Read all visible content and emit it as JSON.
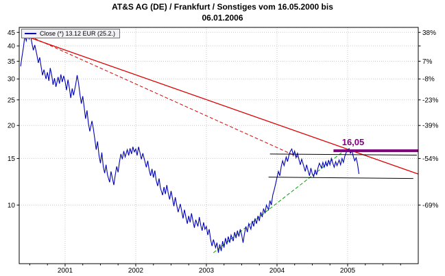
{
  "title": {
    "line1": "AT&S AG (DE) / Frankfurt / Sonstiges vom 16.05.2000 bis",
    "line2": "06.01.2006"
  },
  "legend": {
    "label": "Close (*) 13.12 EUR (25.2.)"
  },
  "colors": {
    "price_line": "#0000b4",
    "trend_red": "#dd0000",
    "trend_green": "#00a000",
    "target_purple": "#800080",
    "support_black": "#000000",
    "grid": "#c8c8c8",
    "axis_text": "#000000",
    "border": "#000000"
  },
  "chart_data": {
    "type": "line",
    "title": "AT&S AG (DE) / Frankfurt / Sonstiges vom 16.05.2000 bis 06.01.2006",
    "xlabel": "",
    "ylabel": "",
    "x_axis": {
      "range": [
        2000.35,
        2006.0
      ],
      "ticks": [
        2001,
        2002,
        2003,
        2004,
        2005
      ],
      "scale": "linear"
    },
    "y_axis": {
      "range": [
        6.0,
        47.0
      ],
      "scale": "log",
      "ticks": [
        45,
        40,
        35,
        30,
        25,
        20,
        15,
        10
      ],
      "right_labels": [
        "38%",
        "",
        "7%",
        "-8%",
        "-23%",
        "-39%",
        "-54%",
        "-69%"
      ]
    },
    "grid": true,
    "legend_position": "top-left",
    "series": [
      {
        "name": "Close",
        "color": "#0000b4",
        "points": [
          [
            2000.37,
            33.5
          ],
          [
            2000.39,
            36.5
          ],
          [
            2000.41,
            39.5
          ],
          [
            2000.43,
            43.6
          ],
          [
            2000.45,
            41.8
          ],
          [
            2000.47,
            44.2
          ],
          [
            2000.49,
            42.5
          ],
          [
            2000.51,
            43.8
          ],
          [
            2000.53,
            41.0
          ],
          [
            2000.55,
            38.5
          ],
          [
            2000.57,
            40.3
          ],
          [
            2000.6,
            37.0
          ],
          [
            2000.62,
            34.5
          ],
          [
            2000.64,
            36.2
          ],
          [
            2000.66,
            33.5
          ],
          [
            2000.68,
            31.0
          ],
          [
            2000.7,
            32.5
          ],
          [
            2000.73,
            30.0
          ],
          [
            2000.75,
            31.8
          ],
          [
            2000.77,
            29.5
          ],
          [
            2000.79,
            33.0
          ],
          [
            2000.81,
            31.0
          ],
          [
            2000.83,
            28.5
          ],
          [
            2000.85,
            30.2
          ],
          [
            2000.87,
            28.0
          ],
          [
            2000.9,
            30.5
          ],
          [
            2000.92,
            28.8
          ],
          [
            2000.94,
            31.2
          ],
          [
            2000.96,
            29.2
          ],
          [
            2000.98,
            30.8
          ],
          [
            2001.0,
            29.3
          ],
          [
            2001.02,
            27.2
          ],
          [
            2001.04,
            29.8
          ],
          [
            2001.06,
            27.8
          ],
          [
            2001.08,
            25.4
          ],
          [
            2001.1,
            27.6
          ],
          [
            2001.12,
            26.0
          ],
          [
            2001.15,
            28.6
          ],
          [
            2001.17,
            31.0
          ],
          [
            2001.19,
            29.0
          ],
          [
            2001.21,
            26.2
          ],
          [
            2001.23,
            24.2
          ],
          [
            2001.25,
            25.8
          ],
          [
            2001.27,
            23.4
          ],
          [
            2001.29,
            21.2
          ],
          [
            2001.31,
            22.8
          ],
          [
            2001.33,
            20.4
          ],
          [
            2001.35,
            19.0
          ],
          [
            2001.38,
            20.8
          ],
          [
            2001.4,
            19.4
          ],
          [
            2001.42,
            17.8
          ],
          [
            2001.44,
            16.2
          ],
          [
            2001.46,
            17.4
          ],
          [
            2001.48,
            15.4
          ],
          [
            2001.5,
            14.4
          ],
          [
            2001.52,
            15.8
          ],
          [
            2001.54,
            14.0
          ],
          [
            2001.56,
            13.2
          ],
          [
            2001.58,
            14.2
          ],
          [
            2001.6,
            13.0
          ],
          [
            2001.63,
            12.2
          ],
          [
            2001.65,
            13.4
          ],
          [
            2001.67,
            12.6
          ],
          [
            2001.69,
            11.9
          ],
          [
            2001.71,
            13.0
          ],
          [
            2001.73,
            14.0
          ],
          [
            2001.75,
            13.3
          ],
          [
            2001.77,
            14.6
          ],
          [
            2001.79,
            15.6
          ],
          [
            2001.81,
            14.9
          ],
          [
            2001.83,
            16.0
          ],
          [
            2001.85,
            15.2
          ],
          [
            2001.88,
            16.2
          ],
          [
            2001.9,
            15.4
          ],
          [
            2001.92,
            16.4
          ],
          [
            2001.94,
            15.6
          ],
          [
            2001.96,
            16.6
          ],
          [
            2001.98,
            15.9
          ],
          [
            2002.0,
            16.3
          ],
          [
            2002.02,
            15.4
          ],
          [
            2002.04,
            16.6
          ],
          [
            2002.06,
            15.8
          ],
          [
            2002.08,
            14.9
          ],
          [
            2002.1,
            15.7
          ],
          [
            2002.13,
            14.6
          ],
          [
            2002.15,
            13.9
          ],
          [
            2002.17,
            14.7
          ],
          [
            2002.19,
            13.6
          ],
          [
            2002.21,
            12.9
          ],
          [
            2002.23,
            13.7
          ],
          [
            2002.25,
            12.7
          ],
          [
            2002.27,
            13.5
          ],
          [
            2002.29,
            12.4
          ],
          [
            2002.31,
            11.8
          ],
          [
            2002.33,
            12.6
          ],
          [
            2002.35,
            11.6
          ],
          [
            2002.38,
            10.9
          ],
          [
            2002.4,
            11.7
          ],
          [
            2002.42,
            11.0
          ],
          [
            2002.44,
            11.9
          ],
          [
            2002.46,
            11.1
          ],
          [
            2002.48,
            10.5
          ],
          [
            2002.5,
            11.3
          ],
          [
            2002.52,
            10.6
          ],
          [
            2002.54,
            9.9
          ],
          [
            2002.56,
            10.7
          ],
          [
            2002.58,
            10.0
          ],
          [
            2002.6,
            9.4
          ],
          [
            2002.63,
            10.1
          ],
          [
            2002.65,
            9.5
          ],
          [
            2002.67,
            8.9
          ],
          [
            2002.69,
            9.6
          ],
          [
            2002.71,
            9.0
          ],
          [
            2002.73,
            8.5
          ],
          [
            2002.75,
            9.1
          ],
          [
            2002.77,
            8.6
          ],
          [
            2002.79,
            9.3
          ],
          [
            2002.81,
            8.7
          ],
          [
            2002.83,
            8.2
          ],
          [
            2002.85,
            8.8
          ],
          [
            2002.88,
            8.3
          ],
          [
            2002.9,
            9.0
          ],
          [
            2002.92,
            8.4
          ],
          [
            2002.94,
            8.0
          ],
          [
            2002.96,
            8.6
          ],
          [
            2002.98,
            8.1
          ],
          [
            2003.0,
            8.3
          ],
          [
            2003.02,
            7.7
          ],
          [
            2003.04,
            8.1
          ],
          [
            2003.06,
            7.4
          ],
          [
            2003.08,
            7.0
          ],
          [
            2003.1,
            7.4
          ],
          [
            2003.13,
            6.9
          ],
          [
            2003.15,
            7.2
          ],
          [
            2003.17,
            6.6
          ],
          [
            2003.19,
            7.1
          ],
          [
            2003.21,
            6.7
          ],
          [
            2003.23,
            7.3
          ],
          [
            2003.25,
            6.9
          ],
          [
            2003.27,
            7.5
          ],
          [
            2003.29,
            7.1
          ],
          [
            2003.31,
            7.6
          ],
          [
            2003.33,
            7.2
          ],
          [
            2003.35,
            7.7
          ],
          [
            2003.38,
            7.3
          ],
          [
            2003.4,
            7.9
          ],
          [
            2003.42,
            7.5
          ],
          [
            2003.44,
            8.0
          ],
          [
            2003.46,
            7.6
          ],
          [
            2003.48,
            8.1
          ],
          [
            2003.5,
            7.7
          ],
          [
            2003.52,
            7.2
          ],
          [
            2003.54,
            7.8
          ],
          [
            2003.56,
            8.3
          ],
          [
            2003.58,
            7.9
          ],
          [
            2003.6,
            8.5
          ],
          [
            2003.63,
            8.1
          ],
          [
            2003.65,
            8.7
          ],
          [
            2003.67,
            8.3
          ],
          [
            2003.69,
            8.9
          ],
          [
            2003.71,
            8.5
          ],
          [
            2003.73,
            9.1
          ],
          [
            2003.75,
            8.7
          ],
          [
            2003.77,
            9.4
          ],
          [
            2003.79,
            9.0
          ],
          [
            2003.81,
            9.7
          ],
          [
            2003.83,
            9.3
          ],
          [
            2003.85,
            10.0
          ],
          [
            2003.88,
            9.6
          ],
          [
            2003.9,
            10.4
          ],
          [
            2003.92,
            10.0
          ],
          [
            2003.94,
            10.9
          ],
          [
            2003.96,
            11.4
          ],
          [
            2003.98,
            12.0
          ],
          [
            2004.0,
            12.7
          ],
          [
            2004.02,
            13.4
          ],
          [
            2004.04,
            12.9
          ],
          [
            2004.06,
            14.0
          ],
          [
            2004.08,
            14.7
          ],
          [
            2004.1,
            14.1
          ],
          [
            2004.13,
            15.2
          ],
          [
            2004.15,
            14.6
          ],
          [
            2004.17,
            15.5
          ],
          [
            2004.19,
            16.0
          ],
          [
            2004.21,
            16.3
          ],
          [
            2004.23,
            15.4
          ],
          [
            2004.25,
            16.0
          ],
          [
            2004.27,
            15.1
          ],
          [
            2004.29,
            15.7
          ],
          [
            2004.31,
            14.9
          ],
          [
            2004.33,
            14.2
          ],
          [
            2004.35,
            14.9
          ],
          [
            2004.38,
            14.0
          ],
          [
            2004.4,
            13.4
          ],
          [
            2004.42,
            14.2
          ],
          [
            2004.44,
            13.5
          ],
          [
            2004.46,
            12.9
          ],
          [
            2004.48,
            13.8
          ],
          [
            2004.5,
            13.1
          ],
          [
            2004.52,
            12.8
          ],
          [
            2004.54,
            13.6
          ],
          [
            2004.56,
            13.0
          ],
          [
            2004.58,
            13.8
          ],
          [
            2004.6,
            14.4
          ],
          [
            2004.63,
            13.8
          ],
          [
            2004.65,
            14.5
          ],
          [
            2004.67,
            13.9
          ],
          [
            2004.69,
            14.6
          ],
          [
            2004.71,
            14.0
          ],
          [
            2004.73,
            14.8
          ],
          [
            2004.75,
            14.2
          ],
          [
            2004.77,
            15.0
          ],
          [
            2004.79,
            14.4
          ],
          [
            2004.81,
            13.9
          ],
          [
            2004.83,
            14.6
          ],
          [
            2004.85,
            14.1
          ],
          [
            2004.88,
            14.8
          ],
          [
            2004.9,
            14.2
          ],
          [
            2004.92,
            15.0
          ],
          [
            2004.94,
            14.5
          ],
          [
            2004.96,
            15.3
          ],
          [
            2004.98,
            15.8
          ],
          [
            2005.0,
            16.1
          ],
          [
            2005.02,
            16.35
          ],
          [
            2005.04,
            15.7
          ],
          [
            2005.06,
            16.1
          ],
          [
            2005.08,
            15.3
          ],
          [
            2005.1,
            14.7
          ],
          [
            2005.12,
            15.1
          ],
          [
            2005.14,
            14.3
          ],
          [
            2005.16,
            13.12
          ]
        ]
      }
    ],
    "trendlines": [
      {
        "name": "red-solid-downtrend-line",
        "color": "#dd0000",
        "dash": "none",
        "width": 1.3,
        "from": [
          2000.5,
          43.0
        ],
        "to": [
          2006.0,
          13.1
        ]
      },
      {
        "name": "red-dashed-downtrend-line",
        "color": "#dd0000",
        "dash": "5,3",
        "width": 1,
        "from": [
          2000.5,
          43.5
        ],
        "to": [
          2004.32,
          15.1
        ]
      },
      {
        "name": "green-dashed-uptrend-line",
        "color": "#00a000",
        "dash": "5,3",
        "width": 1,
        "from": [
          2003.1,
          6.6
        ],
        "to": [
          2004.95,
          16.05
        ]
      },
      {
        "name": "black-resistance-line",
        "color": "#000000",
        "dash": "none",
        "width": 1,
        "from": [
          2003.9,
          15.6
        ],
        "to": [
          2005.98,
          15.45
        ]
      },
      {
        "name": "black-support-line",
        "color": "#000000",
        "dash": "none",
        "width": 1,
        "from": [
          2003.88,
          12.75
        ],
        "to": [
          2005.93,
          12.6
        ]
      },
      {
        "name": "purple-target-line",
        "color": "#800080",
        "dash": "none",
        "width": 4,
        "from": [
          2004.8,
          16.05
        ],
        "to": [
          2006.0,
          16.05
        ]
      }
    ],
    "annotation": {
      "text": "16,05",
      "x": 2005.08,
      "y": 17.4,
      "color": "#800080"
    },
    "last_close": {
      "value": "13.12",
      "currency": "EUR",
      "date": "25.2."
    }
  }
}
